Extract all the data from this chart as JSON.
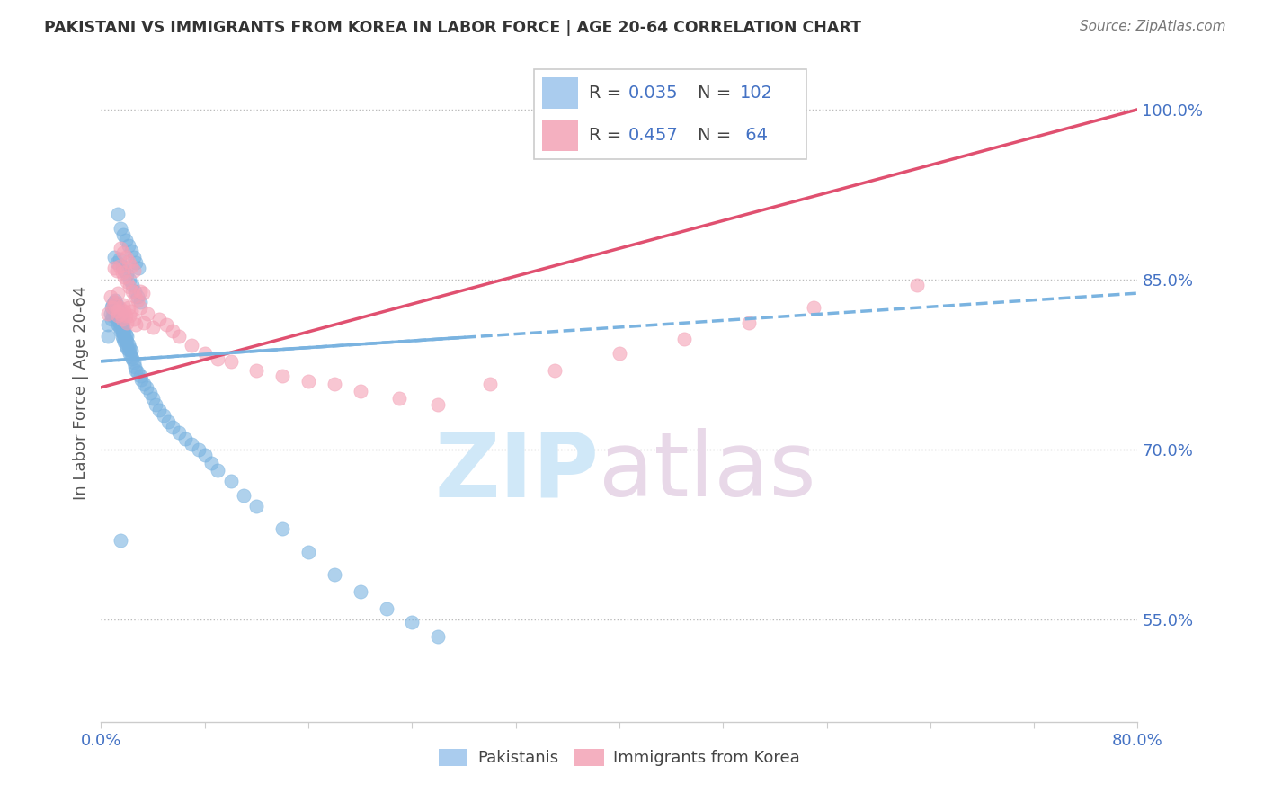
{
  "title": "PAKISTANI VS IMMIGRANTS FROM KOREA IN LABOR FORCE | AGE 20-64 CORRELATION CHART",
  "source": "Source: ZipAtlas.com",
  "ylabel": "In Labor Force | Age 20-64",
  "xlim": [
    0.0,
    0.8
  ],
  "ylim": [
    0.46,
    1.04
  ],
  "ytick_positions": [
    0.55,
    0.7,
    0.85,
    1.0
  ],
  "ytick_labels": [
    "55.0%",
    "70.0%",
    "85.0%",
    "100.0%"
  ],
  "blue_color": "#7ab3e0",
  "pink_color": "#f4a0b5",
  "pink_line_color": "#e05070",
  "blue_line_color": "#7ab3e0",
  "watermark_zip": "ZIP",
  "watermark_atlas": "atlas",
  "blue_line_x": [
    0.0,
    0.8
  ],
  "blue_line_y": [
    0.778,
    0.838
  ],
  "pink_line_x": [
    0.0,
    0.8
  ],
  "pink_line_y": [
    0.755,
    1.0
  ],
  "blue_scatter_x": [
    0.005,
    0.005,
    0.007,
    0.008,
    0.008,
    0.009,
    0.009,
    0.01,
    0.01,
    0.01,
    0.011,
    0.011,
    0.011,
    0.012,
    0.012,
    0.012,
    0.013,
    0.013,
    0.013,
    0.013,
    0.014,
    0.014,
    0.014,
    0.015,
    0.015,
    0.015,
    0.015,
    0.016,
    0.016,
    0.016,
    0.016,
    0.017,
    0.017,
    0.017,
    0.018,
    0.018,
    0.018,
    0.019,
    0.019,
    0.019,
    0.02,
    0.02,
    0.02,
    0.021,
    0.021,
    0.022,
    0.022,
    0.023,
    0.023,
    0.024,
    0.025,
    0.026,
    0.027,
    0.028,
    0.03,
    0.031,
    0.033,
    0.035,
    0.038,
    0.04,
    0.042,
    0.045,
    0.048,
    0.052,
    0.055,
    0.06,
    0.065,
    0.07,
    0.075,
    0.08,
    0.085,
    0.09,
    0.1,
    0.11,
    0.12,
    0.14,
    0.16,
    0.18,
    0.2,
    0.22,
    0.24,
    0.26,
    0.01,
    0.012,
    0.014,
    0.016,
    0.018,
    0.02,
    0.022,
    0.024,
    0.026,
    0.028,
    0.03,
    0.015,
    0.017,
    0.019,
    0.021,
    0.023,
    0.025,
    0.027,
    0.029,
    0.013,
    0.015
  ],
  "blue_scatter_y": [
    0.8,
    0.81,
    0.82,
    0.815,
    0.825,
    0.818,
    0.828,
    0.82,
    0.825,
    0.83,
    0.822,
    0.827,
    0.832,
    0.818,
    0.823,
    0.828,
    0.81,
    0.815,
    0.82,
    0.825,
    0.808,
    0.813,
    0.818,
    0.805,
    0.81,
    0.815,
    0.82,
    0.8,
    0.805,
    0.81,
    0.815,
    0.798,
    0.803,
    0.808,
    0.795,
    0.8,
    0.805,
    0.792,
    0.797,
    0.802,
    0.79,
    0.795,
    0.8,
    0.788,
    0.793,
    0.785,
    0.79,
    0.782,
    0.787,
    0.78,
    0.777,
    0.773,
    0.77,
    0.768,
    0.765,
    0.762,
    0.758,
    0.755,
    0.75,
    0.745,
    0.74,
    0.735,
    0.73,
    0.725,
    0.72,
    0.715,
    0.71,
    0.705,
    0.7,
    0.695,
    0.688,
    0.682,
    0.672,
    0.66,
    0.65,
    0.63,
    0.61,
    0.59,
    0.575,
    0.56,
    0.548,
    0.535,
    0.87,
    0.865,
    0.868,
    0.862,
    0.858,
    0.855,
    0.85,
    0.845,
    0.84,
    0.835,
    0.83,
    0.895,
    0.89,
    0.885,
    0.88,
    0.875,
    0.87,
    0.865,
    0.86,
    0.908,
    0.62
  ],
  "pink_scatter_x": [
    0.005,
    0.007,
    0.009,
    0.01,
    0.011,
    0.012,
    0.013,
    0.013,
    0.014,
    0.015,
    0.016,
    0.017,
    0.018,
    0.019,
    0.02,
    0.021,
    0.022,
    0.023,
    0.025,
    0.027,
    0.03,
    0.033,
    0.036,
    0.04,
    0.045,
    0.05,
    0.055,
    0.06,
    0.07,
    0.08,
    0.09,
    0.1,
    0.12,
    0.14,
    0.16,
    0.18,
    0.2,
    0.23,
    0.26,
    0.3,
    0.35,
    0.4,
    0.45,
    0.5,
    0.55,
    0.63,
    0.01,
    0.012,
    0.014,
    0.016,
    0.018,
    0.02,
    0.022,
    0.024,
    0.026,
    0.028,
    0.03,
    0.032,
    0.015,
    0.017,
    0.019,
    0.021,
    0.023,
    0.025
  ],
  "pink_scatter_y": [
    0.82,
    0.835,
    0.825,
    0.828,
    0.83,
    0.822,
    0.818,
    0.838,
    0.825,
    0.82,
    0.815,
    0.828,
    0.822,
    0.818,
    0.812,
    0.825,
    0.818,
    0.822,
    0.815,
    0.81,
    0.825,
    0.812,
    0.82,
    0.808,
    0.815,
    0.81,
    0.805,
    0.8,
    0.792,
    0.785,
    0.78,
    0.778,
    0.77,
    0.765,
    0.76,
    0.758,
    0.752,
    0.745,
    0.74,
    0.758,
    0.77,
    0.785,
    0.798,
    0.812,
    0.825,
    0.845,
    0.86,
    0.858,
    0.862,
    0.856,
    0.852,
    0.848,
    0.844,
    0.84,
    0.836,
    0.832,
    0.84,
    0.838,
    0.878,
    0.874,
    0.87,
    0.866,
    0.862,
    0.858
  ]
}
